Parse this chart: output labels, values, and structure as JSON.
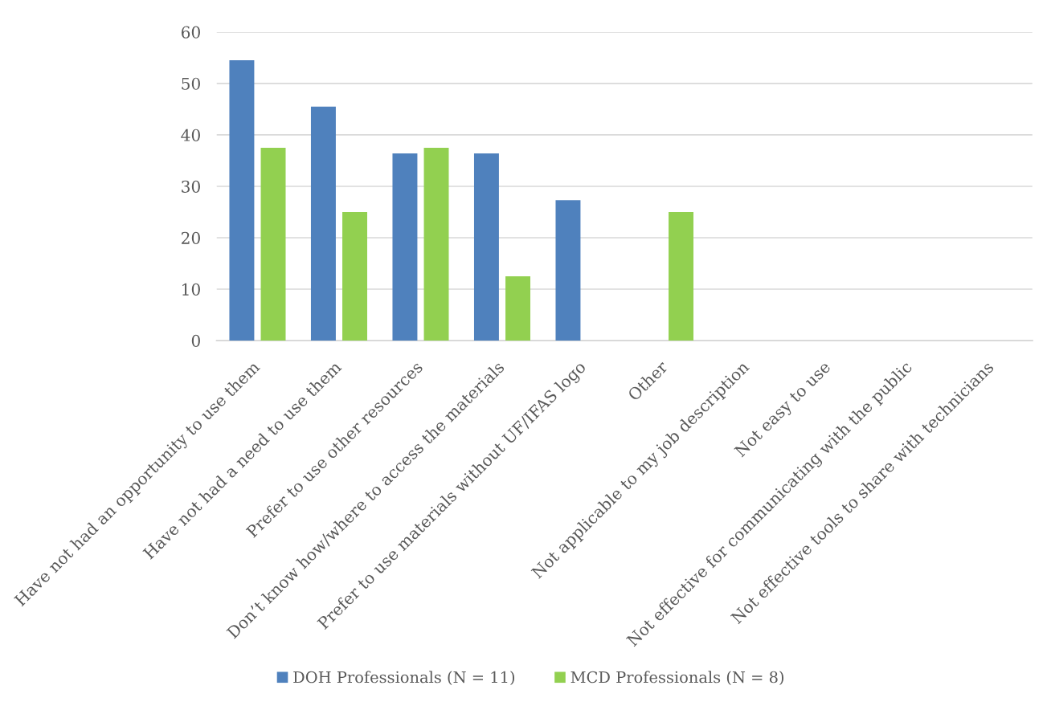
{
  "chart_data": {
    "type": "bar",
    "categories": [
      "Have not had an opportunity to use them",
      "Have not had a need to use them",
      "Prefer to use other resources",
      "Don’t know how/where to access the materials",
      "Prefer to use materials without UF/IFAS logo",
      "Other",
      "Not applicable to my job description",
      "Not easy to use",
      "Not effective for communicating with the public",
      "Not effective tools to share with technicians"
    ],
    "series": [
      {
        "name": "DOH Professionals (N = 11)",
        "color": "#4f81bd",
        "values": [
          54.5,
          45.5,
          36.4,
          36.4,
          27.3,
          0,
          0,
          0,
          0,
          0
        ]
      },
      {
        "name": "MCD Professionals (N = 8)",
        "color": "#92d050",
        "values": [
          37.5,
          25,
          37.5,
          12.5,
          0,
          25,
          0,
          0,
          0,
          0
        ]
      }
    ],
    "ylim": [
      0,
      60
    ],
    "yticks": [
      0,
      10,
      20,
      30,
      40,
      50,
      60
    ],
    "grid": "y",
    "legend": "bottom"
  }
}
